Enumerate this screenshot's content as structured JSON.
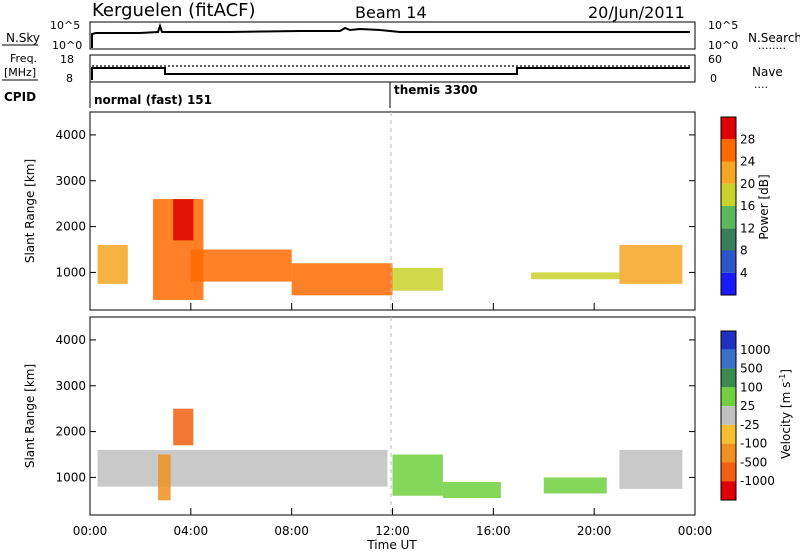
{
  "header": {
    "station": "Kerguelen (fitACF)",
    "beam": "Beam 14",
    "date": "20/Jun/2011"
  },
  "panels": {
    "nsky": {
      "label": "N.Sky",
      "ticks_left": [
        "10^5",
        "10^0"
      ],
      "ticks_right": [
        "10^5",
        "10^0"
      ],
      "right_label": "N.Search",
      "right_legend": "........"
    },
    "freq": {
      "label_lines": [
        "Freq.",
        "[MHz]"
      ],
      "ticks_left": [
        "18",
        "8"
      ],
      "ticks_right": [
        "60",
        "0"
      ],
      "right_label": "Nave",
      "right_legend": "...."
    },
    "cpid": {
      "label": "CPID",
      "modes": [
        "normal (fast) 151",
        "themis 3300"
      ]
    }
  },
  "axes": {
    "y_label": "Slant Range [km]",
    "y_ticks": [
      "1000",
      "2000",
      "3000",
      "4000"
    ],
    "x_label": "Time UT",
    "x_ticks": [
      "00:00",
      "04:00",
      "08:00",
      "12:00",
      "16:00",
      "20:00",
      "00:00"
    ]
  },
  "colorbars": {
    "power": {
      "label": "Power [dB]",
      "ticks": [
        "4",
        "8",
        "12",
        "16",
        "20",
        "24",
        "28"
      ],
      "colors": [
        "#1a1aff",
        "#2c55c8",
        "#3a7d5a",
        "#5cb85c",
        "#c8d22a",
        "#f5a623",
        "#ff6a00",
        "#e00000"
      ]
    },
    "velocity": {
      "label": "Velocity [m s",
      "label_sup": "-1",
      "label_end": "]",
      "ticks": [
        "1000",
        "500",
        "100",
        "25",
        "-25",
        "-100",
        "-500",
        "-1000"
      ],
      "colors": [
        "#2030c0",
        "#3a70c8",
        "#3a8a50",
        "#70d040",
        "#c0c0c0",
        "#f5c030",
        "#f09020",
        "#f06010",
        "#e00000"
      ]
    }
  },
  "chart_data": [
    {
      "type": "heatmap",
      "title": "Power",
      "x_range_hours": [
        0,
        24
      ],
      "y_range_km": [
        180,
        4500
      ],
      "value_label": "Power [dB]",
      "regions": [
        {
          "x": [
            0.3,
            1.5
          ],
          "y": [
            750,
            1600
          ],
          "value": 22
        },
        {
          "x": [
            2.5,
            4.5
          ],
          "y": [
            400,
            2600
          ],
          "value": 24
        },
        {
          "x": [
            3.3,
            4.1
          ],
          "y": [
            1700,
            2600
          ],
          "value": 28
        },
        {
          "x": [
            4.0,
            8.0
          ],
          "y": [
            800,
            1500
          ],
          "value": 26
        },
        {
          "x": [
            8.0,
            12.0
          ],
          "y": [
            500,
            1200
          ],
          "value": 27
        },
        {
          "x": [
            12.0,
            14.0
          ],
          "y": [
            600,
            1100
          ],
          "value": 18
        },
        {
          "x": [
            17.5,
            21.0
          ],
          "y": [
            850,
            1000
          ],
          "value": 16
        },
        {
          "x": [
            21.0,
            23.5
          ],
          "y": [
            750,
            1600
          ],
          "value": 22
        }
      ]
    },
    {
      "type": "heatmap",
      "title": "Velocity",
      "x_range_hours": [
        0,
        24
      ],
      "y_range_km": [
        180,
        4500
      ],
      "value_label": "Velocity [m s-1]",
      "regions": [
        {
          "x": [
            0.3,
            11.8
          ],
          "y": [
            800,
            1600
          ],
          "value": 0
        },
        {
          "x": [
            2.7,
            3.2
          ],
          "y": [
            500,
            1500
          ],
          "value": -150
        },
        {
          "x": [
            3.3,
            4.1
          ],
          "y": [
            1700,
            2500
          ],
          "value": -700
        },
        {
          "x": [
            12.0,
            14.0
          ],
          "y": [
            600,
            1500
          ],
          "value": 60
        },
        {
          "x": [
            14.0,
            16.3
          ],
          "y": [
            550,
            900
          ],
          "value": 60
        },
        {
          "x": [
            18.0,
            20.5
          ],
          "y": [
            650,
            1000
          ],
          "value": 60
        },
        {
          "x": [
            21.0,
            23.5
          ],
          "y": [
            750,
            1600
          ],
          "value": 0
        }
      ]
    }
  ]
}
